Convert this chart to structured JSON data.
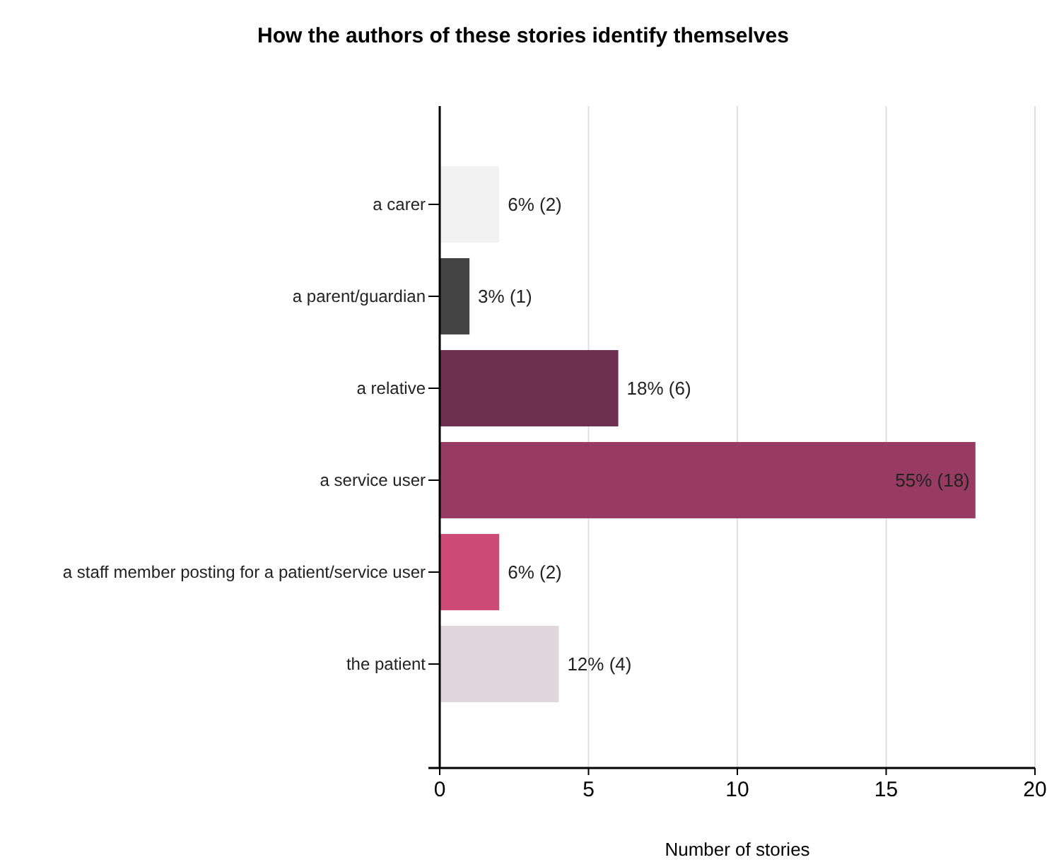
{
  "chart_data": {
    "type": "bar",
    "orientation": "horizontal",
    "title": "How the authors of these stories identify themselves",
    "xlabel": "Number of stories",
    "categories": [
      "a carer",
      "a parent/guardian",
      "a relative",
      "a service user",
      "a staff member posting for a patient/service user",
      "the patient"
    ],
    "values": [
      2,
      1,
      6,
      18,
      2,
      4
    ],
    "colors": [
      "#f2f2f2",
      "#444444",
      "#6d2f4f",
      "#983b62",
      "#cf4b77",
      "#e0d6dc"
    ],
    "value_labels": [
      "6% (2)",
      "3% (1)",
      "18% (6)",
      "55% (18)",
      "6% (2)",
      "12% (4)"
    ],
    "xlim": [
      0,
      20
    ],
    "xticks": [
      0,
      5,
      10,
      15,
      20
    ],
    "grid": "x"
  }
}
